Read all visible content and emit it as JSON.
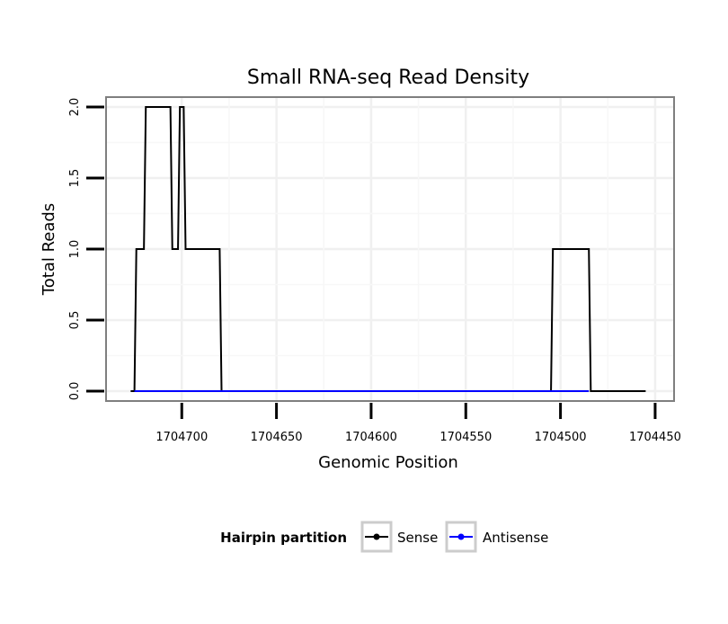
{
  "chart_data": {
    "type": "line",
    "title": "Small RNA-seq Read Density",
    "xlabel": "Genomic Position",
    "ylabel": "Total Reads",
    "x_reversed": true,
    "xlim": [
      1704740,
      1704440
    ],
    "ylim": [
      -0.07,
      2.07
    ],
    "x_ticks": [
      1704700,
      1704650,
      1704600,
      1704550,
      1704500,
      1704450
    ],
    "x_tick_labels": [
      "1704700",
      "1704650",
      "1704600",
      "1704550",
      "1704500",
      "1704450"
    ],
    "y_ticks": [
      0,
      0.5,
      1,
      1.5,
      2
    ],
    "y_tick_labels": [
      "0.0",
      "0.5",
      "1.0",
      "1.5",
      "2.0"
    ],
    "grid": true,
    "legend": {
      "title": "Hairpin partition",
      "position": "bottom",
      "entries": [
        "Sense",
        "Antisense"
      ]
    },
    "series": [
      {
        "name": "Sense",
        "color": "#000000",
        "points": [
          [
            1704727,
            0
          ],
          [
            1704725,
            0
          ],
          [
            1704724,
            1
          ],
          [
            1704720,
            1
          ],
          [
            1704719,
            2
          ],
          [
            1704706,
            2
          ],
          [
            1704705,
            1
          ],
          [
            1704702,
            1
          ],
          [
            1704701,
            2
          ],
          [
            1704699,
            2
          ],
          [
            1704698,
            1
          ],
          [
            1704680,
            1
          ],
          [
            1704679,
            0
          ],
          [
            1704505,
            0
          ],
          [
            1704504,
            1
          ],
          [
            1704485,
            1
          ],
          [
            1704484,
            0
          ],
          [
            1704455,
            0
          ]
        ]
      },
      {
        "name": "Antisense",
        "color": "#0000ff",
        "points": [
          [
            1704725,
            0
          ],
          [
            1704679,
            0
          ],
          [
            1704504,
            0
          ],
          [
            1704485,
            0
          ]
        ]
      }
    ]
  }
}
